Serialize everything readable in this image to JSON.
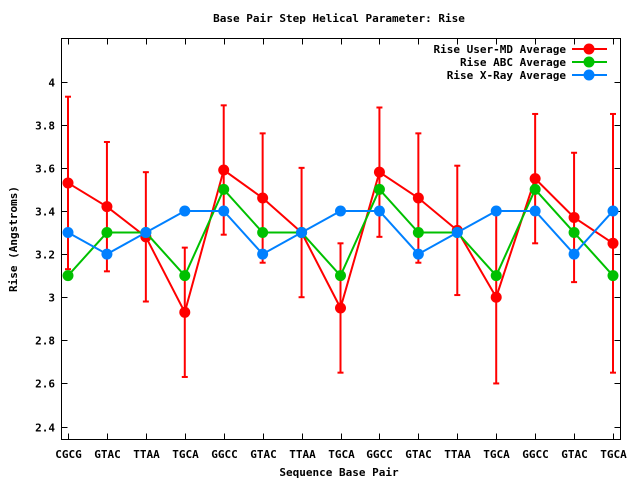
{
  "chart_data": {
    "type": "line",
    "title": "Base Pair Step Helical Parameter: Rise",
    "xlabel": "Sequence Base Pair",
    "ylabel": "Rise (Angstroms)",
    "categories": [
      "CGCG",
      "GTAC",
      "TTAA",
      "TGCA",
      "GGCC",
      "GTAC",
      "TTAA",
      "TGCA",
      "GGCC",
      "GTAC",
      "TTAA",
      "TGCA",
      "GGCC",
      "GTAC",
      "TGCA"
    ],
    "ylim": [
      2.34,
      4.2
    ],
    "yticks": [
      2.4,
      2.6,
      2.8,
      3.0,
      3.2,
      3.4,
      3.6,
      3.8,
      4.0
    ],
    "ytick_labels": [
      "2.4",
      "2.6",
      "2.8",
      "3",
      "3.2",
      "3.4",
      "3.6",
      "3.8",
      "4"
    ],
    "grid": false,
    "legend_position": "top-right",
    "series": [
      {
        "name": "Rise User-MD Average",
        "color": "#ff0000",
        "values": [
          3.53,
          3.42,
          3.28,
          2.93,
          3.59,
          3.46,
          3.3,
          2.95,
          3.58,
          3.46,
          3.31,
          3.0,
          3.55,
          3.37,
          3.25
        ],
        "error_low": [
          3.13,
          3.12,
          2.98,
          2.63,
          3.29,
          3.16,
          3.0,
          2.65,
          3.28,
          3.16,
          3.01,
          2.6,
          3.25,
          3.07,
          2.65
        ],
        "error_high": [
          3.93,
          3.72,
          3.58,
          3.23,
          3.89,
          3.76,
          3.6,
          3.25,
          3.88,
          3.76,
          3.61,
          3.4,
          3.85,
          3.67,
          3.85
        ]
      },
      {
        "name": "Rise ABC Average",
        "color": "#00c000",
        "values": [
          3.1,
          3.3,
          3.3,
          3.1,
          3.5,
          3.3,
          3.3,
          3.1,
          3.5,
          3.3,
          3.3,
          3.1,
          3.5,
          3.3,
          3.1
        ]
      },
      {
        "name": "Rise X-Ray Average",
        "color": "#0080ff",
        "values": [
          3.3,
          3.2,
          3.3,
          3.4,
          3.4,
          3.2,
          3.3,
          3.4,
          3.4,
          3.2,
          3.3,
          3.4,
          3.4,
          3.2,
          3.4
        ]
      }
    ]
  }
}
